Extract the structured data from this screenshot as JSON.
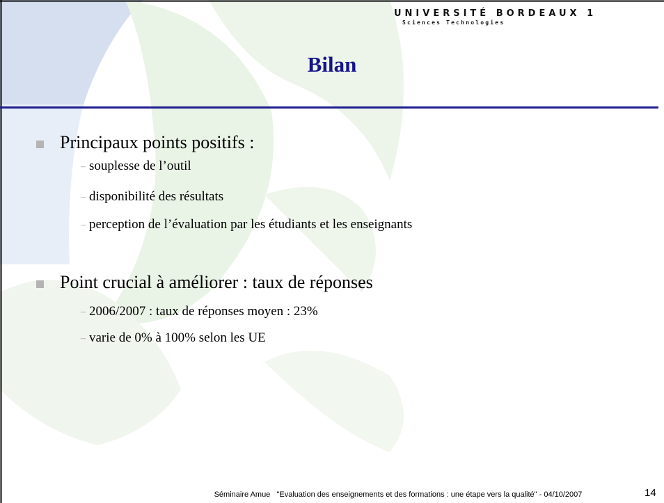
{
  "header": {
    "brand": "UNIVERSITÉ BORDEAUX 1",
    "subtitle": "Sciences Technologies"
  },
  "title": "Bilan",
  "sections": [
    {
      "heading": "Principaux points positifs :",
      "items": [
        "souplesse de l’outil",
        "disponibilité des résultats",
        "perception de l’évaluation par les étudiants et les enseignants"
      ]
    },
    {
      "heading": "Point crucial à améliorer : taux de réponses",
      "items": [
        "2006/2007 : taux de réponses moyen : 23%",
        "varie de 0% à 100% selon les UE"
      ]
    }
  ],
  "footer": {
    "text": "Séminaire Amue   \"Evaluation des enseignements et des formations : une étape vers la qualité\" - 04/10/2007",
    "page": "14"
  }
}
